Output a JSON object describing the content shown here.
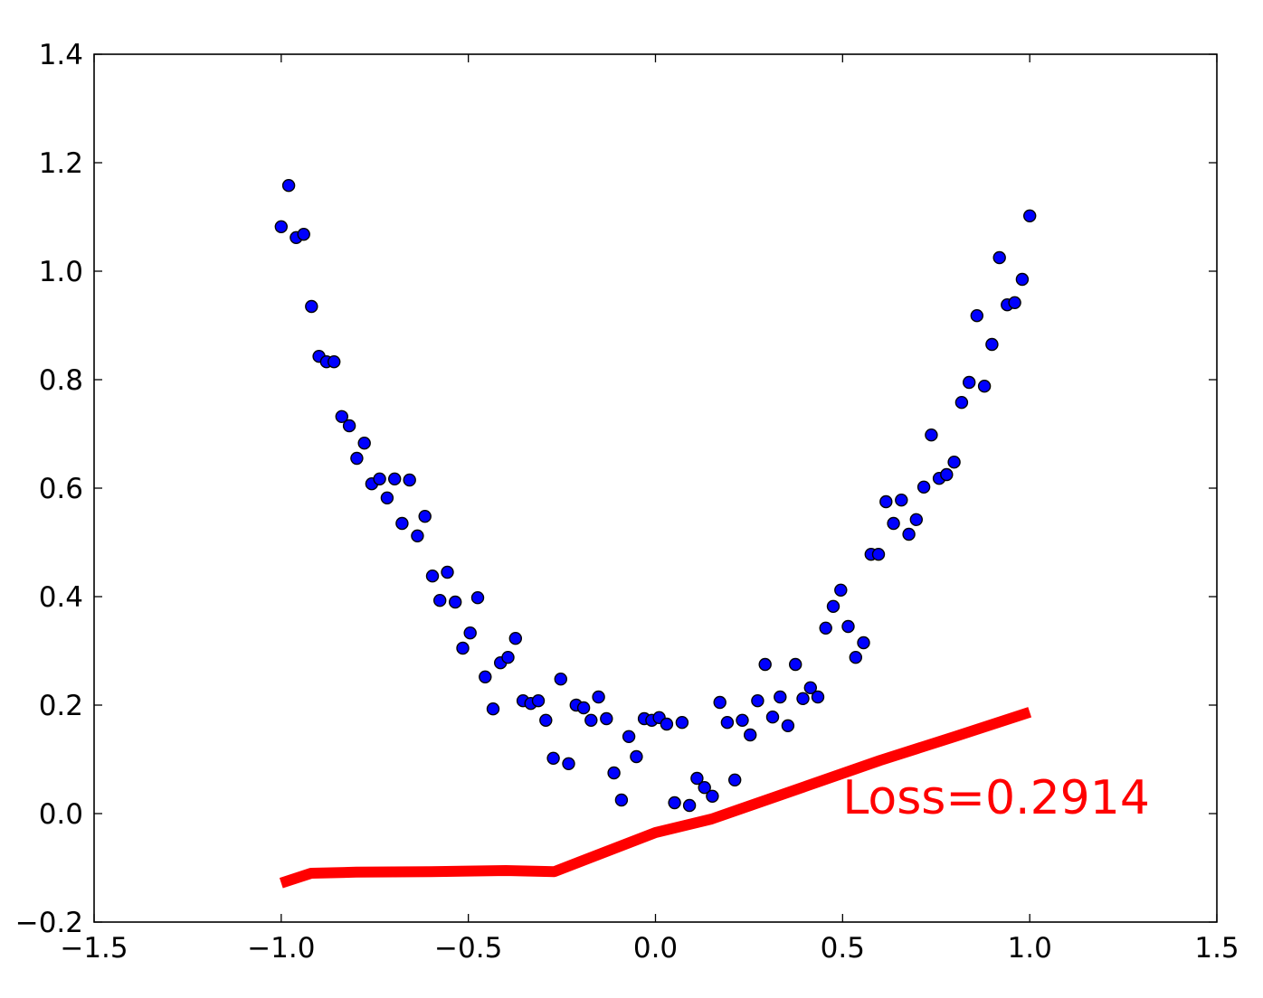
{
  "chart_data": {
    "type": "scatter",
    "title": "",
    "xlabel": "",
    "ylabel": "",
    "xlim": [
      -1.5,
      1.5
    ],
    "ylim": [
      -0.2,
      1.4
    ],
    "x_ticks": [
      -1.5,
      -1.0,
      -0.5,
      0.0,
      0.5,
      1.0,
      1.5
    ],
    "x_tick_labels": [
      "−1.5",
      "−1.0",
      "−0.5",
      "0.0",
      "0.5",
      "1.0",
      "1.5"
    ],
    "y_ticks": [
      -0.2,
      0.0,
      0.2,
      0.4,
      0.6,
      0.8,
      1.0,
      1.2,
      1.4
    ],
    "y_tick_labels": [
      "−0.2",
      "0.0",
      "0.2",
      "0.4",
      "0.6",
      "0.8",
      "1.0",
      "1.2",
      "1.4"
    ],
    "grid": false,
    "annotation": {
      "text": "Loss=0.2914",
      "x": 0.5,
      "y": 0.0,
      "color": "#ff0000"
    },
    "series": [
      {
        "kind": "scatter",
        "color": "#0000ff",
        "edge_color": "#000000",
        "points": [
          [
            -1.0,
            1.082
          ],
          [
            -0.98,
            1.158
          ],
          [
            -0.96,
            1.062
          ],
          [
            -0.94,
            1.068
          ],
          [
            -0.919,
            0.935
          ],
          [
            -0.899,
            0.843
          ],
          [
            -0.879,
            0.833
          ],
          [
            -0.859,
            0.833
          ],
          [
            -0.838,
            0.732
          ],
          [
            -0.818,
            0.715
          ],
          [
            -0.798,
            0.655
          ],
          [
            -0.778,
            0.683
          ],
          [
            -0.758,
            0.608
          ],
          [
            -0.737,
            0.617
          ],
          [
            -0.717,
            0.582
          ],
          [
            -0.697,
            0.617
          ],
          [
            -0.677,
            0.535
          ],
          [
            -0.657,
            0.615
          ],
          [
            -0.636,
            0.512
          ],
          [
            -0.616,
            0.548
          ],
          [
            -0.596,
            0.438
          ],
          [
            -0.576,
            0.393
          ],
          [
            -0.556,
            0.445
          ],
          [
            -0.535,
            0.39
          ],
          [
            -0.515,
            0.305
          ],
          [
            -0.495,
            0.333
          ],
          [
            -0.475,
            0.398
          ],
          [
            -0.455,
            0.252
          ],
          [
            -0.434,
            0.193
          ],
          [
            -0.414,
            0.278
          ],
          [
            -0.394,
            0.288
          ],
          [
            -0.374,
            0.323
          ],
          [
            -0.354,
            0.208
          ],
          [
            -0.333,
            0.203
          ],
          [
            -0.313,
            0.208
          ],
          [
            -0.293,
            0.172
          ],
          [
            -0.273,
            0.102
          ],
          [
            -0.253,
            0.248
          ],
          [
            -0.232,
            0.092
          ],
          [
            -0.212,
            0.2
          ],
          [
            -0.192,
            0.195
          ],
          [
            -0.172,
            0.172
          ],
          [
            -0.152,
            0.215
          ],
          [
            -0.131,
            0.175
          ],
          [
            -0.111,
            0.075
          ],
          [
            -0.091,
            0.025
          ],
          [
            -0.071,
            0.142
          ],
          [
            -0.051,
            0.105
          ],
          [
            -0.03,
            0.175
          ],
          [
            -0.01,
            0.172
          ],
          [
            0.01,
            0.177
          ],
          [
            0.03,
            0.165
          ],
          [
            0.051,
            0.02
          ],
          [
            0.071,
            0.168
          ],
          [
            0.091,
            0.015
          ],
          [
            0.111,
            0.065
          ],
          [
            0.131,
            0.048
          ],
          [
            0.152,
            0.032
          ],
          [
            0.172,
            0.205
          ],
          [
            0.192,
            0.168
          ],
          [
            0.212,
            0.062
          ],
          [
            0.232,
            0.172
          ],
          [
            0.253,
            0.145
          ],
          [
            0.273,
            0.208
          ],
          [
            0.293,
            0.275
          ],
          [
            0.313,
            0.178
          ],
          [
            0.333,
            0.215
          ],
          [
            0.354,
            0.162
          ],
          [
            0.374,
            0.275
          ],
          [
            0.394,
            0.212
          ],
          [
            0.414,
            0.232
          ],
          [
            0.434,
            0.215
          ],
          [
            0.455,
            0.342
          ],
          [
            0.475,
            0.382
          ],
          [
            0.495,
            0.412
          ],
          [
            0.515,
            0.345
          ],
          [
            0.535,
            0.288
          ],
          [
            0.556,
            0.315
          ],
          [
            0.576,
            0.478
          ],
          [
            0.596,
            0.478
          ],
          [
            0.616,
            0.575
          ],
          [
            0.636,
            0.535
          ],
          [
            0.657,
            0.578
          ],
          [
            0.677,
            0.515
          ],
          [
            0.697,
            0.542
          ],
          [
            0.717,
            0.602
          ],
          [
            0.737,
            0.698
          ],
          [
            0.758,
            0.618
          ],
          [
            0.778,
            0.625
          ],
          [
            0.798,
            0.648
          ],
          [
            0.818,
            0.758
          ],
          [
            0.838,
            0.795
          ],
          [
            0.859,
            0.918
          ],
          [
            0.879,
            0.788
          ],
          [
            0.899,
            0.865
          ],
          [
            0.919,
            1.025
          ],
          [
            0.94,
            0.938
          ],
          [
            0.96,
            0.942
          ],
          [
            0.98,
            0.985
          ],
          [
            1.0,
            1.102
          ]
        ]
      },
      {
        "kind": "line",
        "color": "#ff0000",
        "points": [
          [
            -1.0,
            -0.128
          ],
          [
            -0.92,
            -0.11
          ],
          [
            -0.8,
            -0.108
          ],
          [
            -0.6,
            -0.107
          ],
          [
            -0.4,
            -0.105
          ],
          [
            -0.27,
            -0.107
          ],
          [
            0.0,
            -0.035
          ],
          [
            0.15,
            -0.01
          ],
          [
            0.4,
            0.05
          ],
          [
            0.6,
            0.098
          ],
          [
            0.8,
            0.142
          ],
          [
            1.0,
            0.187
          ]
        ]
      }
    ]
  }
}
